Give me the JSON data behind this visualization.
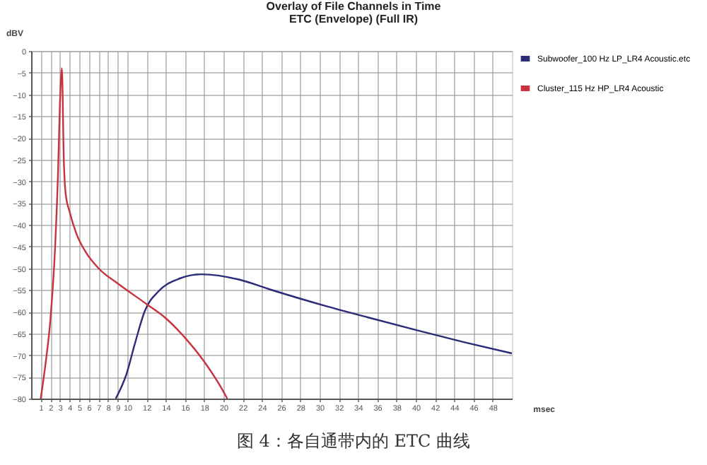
{
  "chart_data": {
    "type": "line",
    "title": "Overlay of File Channels in Time",
    "subtitle": "ETC (Envelope) (Full IR)",
    "xlabel": "msec",
    "ylabel": "dBV",
    "annotations": [
      "图 4：各自通带内的 ETC 曲线"
    ],
    "xlim": [
      0,
      50
    ],
    "xticks": [
      1,
      2,
      3,
      4,
      5,
      6,
      7,
      8,
      9,
      10,
      12,
      14,
      16,
      18,
      20,
      22,
      24,
      26,
      28,
      30,
      32,
      34,
      36,
      38,
      40,
      42,
      44,
      46,
      48
    ],
    "ylim": [
      -80,
      0
    ],
    "yticks": [
      0,
      -5,
      -10,
      -15,
      -20,
      -25,
      -30,
      -35,
      -40,
      -45,
      -50,
      -55,
      -60,
      -65,
      -70,
      -75,
      -80
    ],
    "grid": true,
    "legend": "top right",
    "series": [
      {
        "name": "Subwoofer_100 Hz LP_LR4 Acoustic.etc",
        "color": "#2b2b7a",
        "x": [
          8.8,
          9.9,
          10.8,
          11.8,
          13.3,
          15.2,
          17.7,
          21.6,
          25,
          30.8,
          35,
          40,
          45,
          50
        ],
        "values": [
          -80,
          -74.5,
          -67.3,
          -60,
          -55.2,
          -52.6,
          -51.4,
          -52.6,
          -55,
          -58.8,
          -61.3,
          -64.2,
          -67,
          -69.6
        ]
      },
      {
        "name": "Cluster_115 Hz HP_LR4 Acoustic",
        "color": "#c8323c",
        "x": [
          1,
          1.5,
          2,
          2.5,
          2.8,
          3.0,
          3.2,
          3.4,
          3.6,
          4,
          4.7,
          5.6,
          7,
          9,
          12.1,
          14,
          16,
          18,
          19.5,
          20.4
        ],
        "values": [
          -80,
          -72,
          -62,
          -45,
          -28,
          -12,
          -4,
          -25,
          -33,
          -37,
          -42,
          -46,
          -50,
          -53.5,
          -58.4,
          -61.5,
          -66,
          -71.5,
          -76.5,
          -80
        ]
      }
    ]
  }
}
